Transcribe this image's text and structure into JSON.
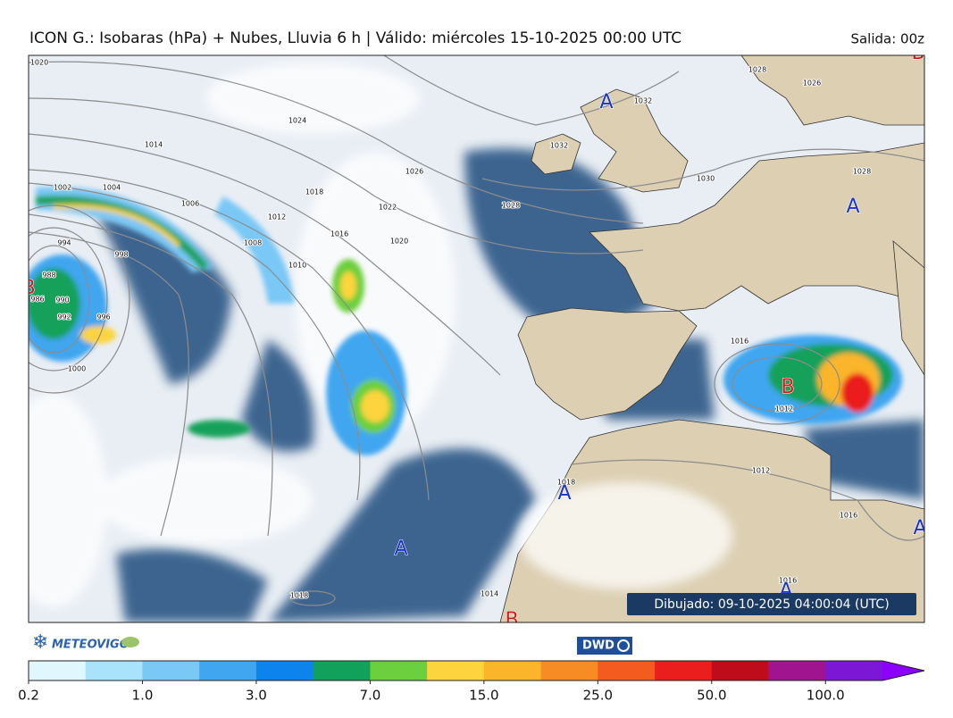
{
  "header": {
    "title": "ICON G.: Isobaras (hPa) + Nubes, Lluvia 6 h | Válido: miércoles 15-10-2025 00:00 UTC",
    "run": "Salida: 00z"
  },
  "map": {
    "pressure_centers": [
      "A",
      "A",
      "A",
      "A",
      "A",
      "A",
      "B",
      "B",
      "B",
      "B"
    ],
    "isobar_labels": [
      1020,
      1014,
      1024,
      1026,
      1022,
      1020,
      1018,
      1016,
      1012,
      1010,
      1008,
      1006,
      1004,
      1002,
      1000,
      998,
      996,
      994,
      992,
      990,
      988,
      986,
      1032,
      1032,
      1030,
      1028,
      1028,
      1026,
      1028,
      1016,
      1012,
      1012,
      1016,
      1016,
      1014,
      1018,
      1018
    ],
    "timestamp": "Dibujado: 09-10-2025 04:00:04 (UTC)"
  },
  "logos": {
    "meteovigo": "METEOVIGO",
    "dwd": "DWD"
  },
  "colorbar": {
    "colors": [
      "#e1f7fe",
      "#a8e2fb",
      "#79c8f6",
      "#40a6f0",
      "#0d83ee",
      "#12a15a",
      "#6ccf3d",
      "#fdd43e",
      "#fbb52b",
      "#f88c24",
      "#f45c1f",
      "#ea1e1d",
      "#bf0c1b",
      "#a0158f",
      "#7c17d6"
    ],
    "extend_color": "#8b00ff",
    "labels": [
      "0.2",
      "1.0",
      "3.0",
      "7.0",
      "15.0",
      "25.0",
      "50.0",
      "100.0"
    ]
  }
}
